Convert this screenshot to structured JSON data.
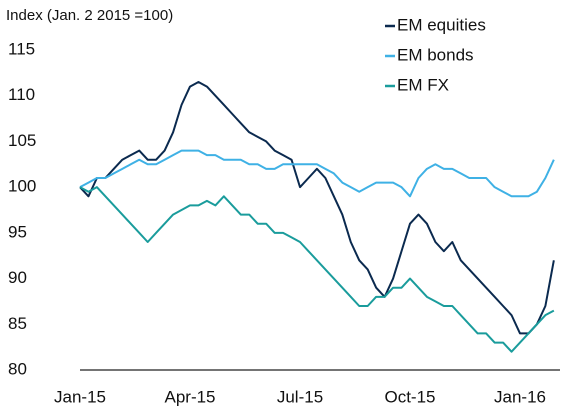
{
  "chart_data": {
    "type": "line",
    "y_axis_label": "Index (Jan. 2 2015 =100)",
    "categories": [
      "Jan-15",
      null,
      null,
      null,
      null,
      null,
      null,
      null,
      null,
      null,
      null,
      null,
      null,
      "Apr-15",
      null,
      null,
      null,
      null,
      null,
      null,
      null,
      null,
      null,
      null,
      null,
      null,
      "Jul-15",
      null,
      null,
      null,
      null,
      null,
      null,
      null,
      null,
      null,
      null,
      null,
      null,
      "Oct-15",
      null,
      null,
      null,
      null,
      null,
      null,
      null,
      null,
      null,
      null,
      null,
      null,
      "Jan-16",
      null,
      null,
      null,
      null
    ],
    "series": [
      {
        "name": "EM equities",
        "color": "#0b2a4f",
        "values": [
          100,
          99,
          101,
          101,
          102,
          103,
          103.5,
          104,
          103,
          103,
          104,
          106,
          109,
          111,
          111.5,
          111,
          110,
          109,
          108,
          107,
          106,
          105.5,
          105,
          104,
          103.5,
          103,
          100,
          101,
          102,
          101,
          99,
          97,
          94,
          92,
          91,
          89,
          88,
          90,
          93,
          96,
          97,
          96,
          94,
          93,
          94,
          92,
          91,
          90,
          89,
          88,
          87,
          86,
          84,
          84,
          85,
          87,
          92
        ]
      },
      {
        "name": "EM bonds",
        "color": "#3fb1e5",
        "values": [
          100,
          100.5,
          101,
          101,
          101.5,
          102,
          102.5,
          103,
          102.5,
          102.5,
          103,
          103.5,
          104,
          104,
          104,
          103.5,
          103.5,
          103,
          103,
          103,
          102.5,
          102.5,
          102,
          102,
          102.5,
          102.5,
          102.5,
          102.5,
          102.5,
          102,
          101.5,
          100.5,
          100,
          99.5,
          100,
          100.5,
          100.5,
          100.5,
          100,
          99,
          101,
          102,
          102.5,
          102,
          102,
          101.5,
          101,
          101,
          101,
          100,
          99.5,
          99,
          99,
          99,
          99.5,
          101,
          103
        ]
      },
      {
        "name": "EM FX",
        "color": "#1a9c9c",
        "values": [
          100,
          99.5,
          100,
          99,
          98,
          97,
          96,
          95,
          94,
          95,
          96,
          97,
          97.5,
          98,
          98,
          98.5,
          98,
          99,
          98,
          97,
          97,
          96,
          96,
          95,
          95,
          94.5,
          94,
          93,
          92,
          91,
          90,
          89,
          88,
          87,
          87,
          88,
          88,
          89,
          89,
          90,
          89,
          88,
          87.5,
          87,
          87,
          86,
          85,
          84,
          84,
          83,
          83,
          82,
          83,
          84,
          85,
          86,
          86.5
        ]
      }
    ],
    "ylim": [
      80,
      115
    ],
    "yticks": [
      80,
      85,
      90,
      95,
      100,
      105,
      110,
      115
    ],
    "grid": false,
    "legend": "upper right"
  }
}
